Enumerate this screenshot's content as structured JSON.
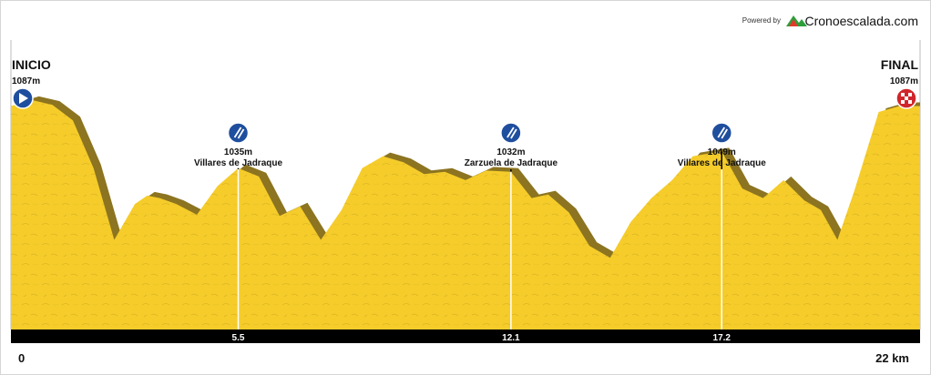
{
  "branding": {
    "powered_by": "Powered by",
    "brand_name": "Cronoescalada.com",
    "logo_colors": [
      "#e03a2b",
      "#2e9e3b"
    ]
  },
  "colors": {
    "profile_fill": "#f5cc2a",
    "profile_shadow": "#8c7420",
    "axis_bar": "#000000",
    "frame": "#cccccc",
    "waypoint_icon": "#1f4e9e",
    "start_icon": "#1f4e9e",
    "finish_icon": "#d0262b"
  },
  "chart_data": {
    "type": "area",
    "title": "",
    "xlabel": "",
    "ylabel": "",
    "xlim": [
      0,
      22
    ],
    "ylim": [
      900,
      1130
    ],
    "grid": false,
    "x": [
      0,
      0.5,
      1,
      1.5,
      2,
      2.5,
      3,
      3.3,
      3.6,
      4,
      4.5,
      5,
      5.5,
      6,
      6.5,
      7,
      7.5,
      8,
      8.5,
      9,
      9.5,
      10,
      10.5,
      11,
      11.5,
      12.1,
      12.6,
      13,
      13.5,
      14,
      14.5,
      15,
      15.5,
      16,
      16.5,
      17.2,
      17.7,
      18.2,
      18.7,
      19.2,
      19.6,
      20,
      20.4,
      21,
      21.5,
      22
    ],
    "y": [
      1087,
      1092,
      1088,
      1075,
      1035,
      975,
      1005,
      1012,
      1010,
      1005,
      996,
      1020,
      1035,
      1028,
      995,
      1003,
      975,
      1000,
      1035,
      1045,
      1040,
      1030,
      1032,
      1025,
      1033,
      1032,
      1010,
      1013,
      998,
      970,
      960,
      990,
      1010,
      1025,
      1045,
      1049,
      1018,
      1010,
      1025,
      1008,
      1000,
      975,
      1015,
      1082,
      1087,
      1087
    ],
    "end_labels": {
      "start": {
        "label": "INICIO",
        "altitude": "1087m"
      },
      "finish": {
        "label": "FINAL",
        "altitude": "1087m"
      }
    },
    "waypoints": [
      {
        "x": 5.5,
        "altitude": "1035m",
        "name": "Villares de Jadraque"
      },
      {
        "x": 12.1,
        "altitude": "1032m",
        "name": "Zarzuela de Jadraque"
      },
      {
        "x": 17.2,
        "altitude": "1049m",
        "name": "Villares de Jadraque"
      }
    ],
    "tick_labels": [
      {
        "x": 0,
        "label": "0"
      },
      {
        "x": 5.5,
        "label": "5.5"
      },
      {
        "x": 12.1,
        "label": "12.1"
      },
      {
        "x": 17.2,
        "label": "17.2"
      },
      {
        "x": 22,
        "label": "22 km"
      }
    ]
  }
}
